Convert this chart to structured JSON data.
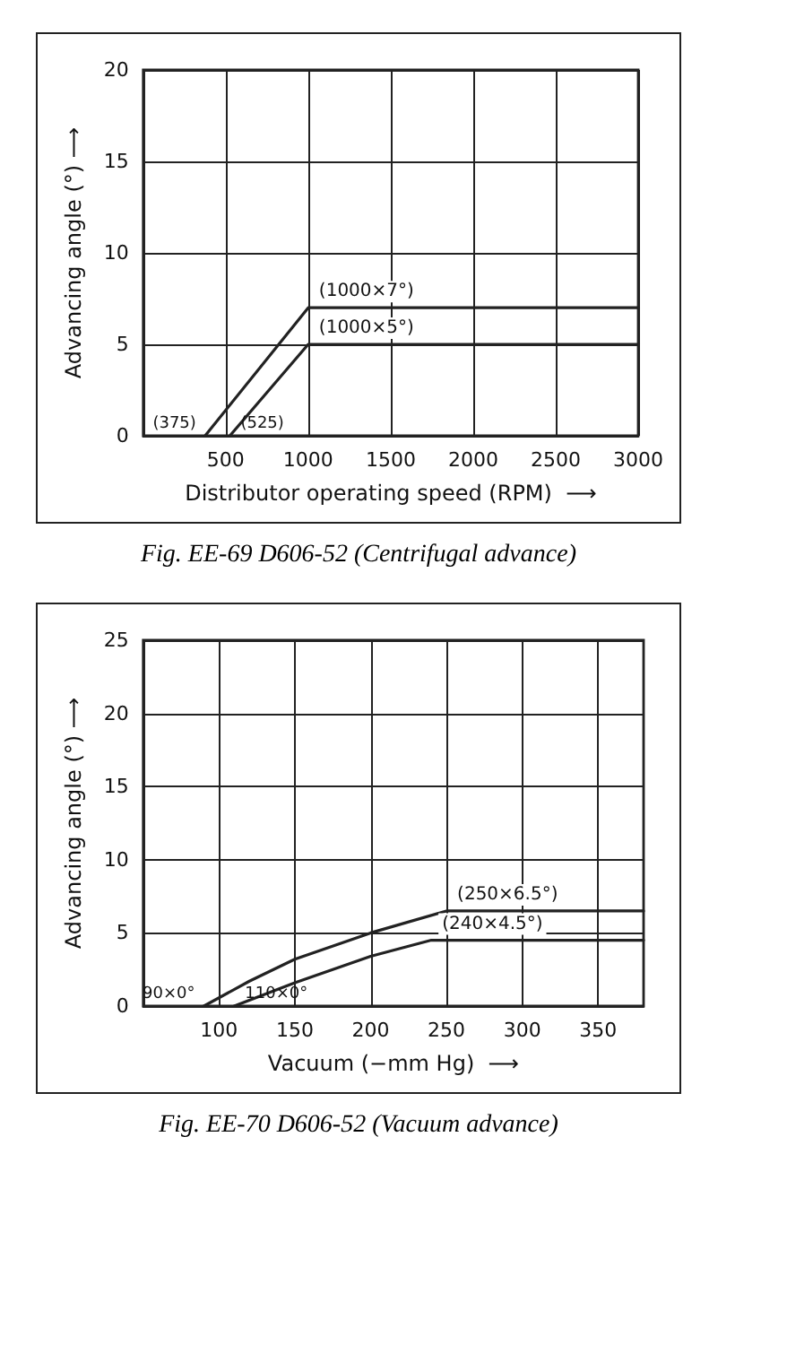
{
  "chart_data": [
    {
      "type": "line",
      "xlabel": "Distributor operating speed (RPM)  ⟶",
      "ylabel": "Advancing angle (°) ⟶",
      "xlim": [
        0,
        3000
      ],
      "xticks": [
        500,
        1000,
        1500,
        2000,
        2500,
        3000
      ],
      "ylim": [
        0,
        20
      ],
      "yticks": [
        0,
        5,
        10,
        15,
        20
      ],
      "grid": true,
      "marker": "none",
      "line_style": "solid",
      "series": [
        {
          "color": "#222222",
          "x": [
            375,
            1000,
            3000
          ],
          "values": [
            0,
            7,
            7
          ]
        },
        {
          "color": "#222222",
          "x": [
            525,
            1000,
            3000
          ],
          "values": [
            0,
            5,
            5
          ]
        }
      ],
      "annotations": [
        {
          "text": "(375)",
          "x": 375,
          "y": 0
        },
        {
          "text": "(525)",
          "x": 525,
          "y": 0
        },
        {
          "text": "(1000×7°)",
          "x": 1000,
          "y": 7
        },
        {
          "text": "(1000×5°)",
          "x": 1000,
          "y": 5
        },
        "Fig. EE-69 D606-52 (Centrifugal advance)"
      ]
    },
    {
      "type": "line",
      "xlabel": "Vacuum (−mm Hg)  ⟶",
      "ylabel": "Advancing angle (°) ⟶",
      "xlim": [
        50,
        380
      ],
      "xticks": [
        100,
        150,
        200,
        250,
        300,
        350
      ],
      "ylim": [
        0,
        25
      ],
      "yticks": [
        0,
        5,
        10,
        15,
        20,
        25
      ],
      "grid": true,
      "marker": "none",
      "line_style": "solid",
      "series": [
        {
          "color": "#222222",
          "x": [
            90,
            120,
            150,
            200,
            250,
            380
          ],
          "values": [
            0,
            1.7,
            3.2,
            5,
            6.5,
            6.5
          ]
        },
        {
          "color": "#222222",
          "x": [
            110,
            150,
            200,
            240,
            380
          ],
          "values": [
            0,
            1.6,
            3.4,
            4.5,
            4.5
          ]
        }
      ],
      "annotations": [
        {
          "text": "90×0°",
          "x": 90,
          "y": 0
        },
        {
          "text": "110×0°",
          "x": 110,
          "y": 0
        },
        {
          "text": "(250×6.5°)",
          "x": 250,
          "y": 6.5
        },
        {
          "text": "(240×4.5°)",
          "x": 240,
          "y": 4.5
        },
        "Fig. EE-70 D606-52 (Vacuum advance)"
      ]
    }
  ]
}
